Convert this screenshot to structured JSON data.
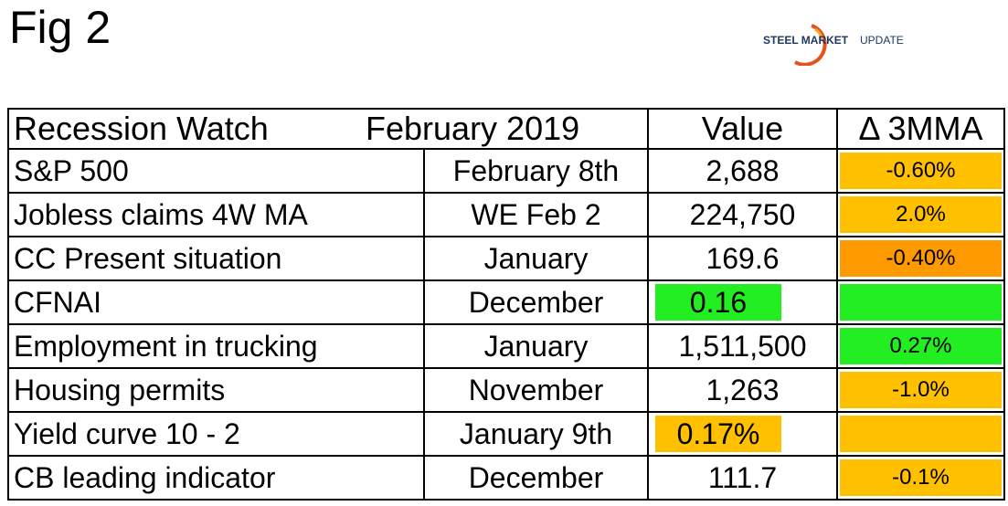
{
  "header": {
    "title": "Fig 2",
    "logo": {
      "strong": "STEEL MARKET",
      "light": "UPDATE"
    }
  },
  "table": {
    "header": [
      "Recession Watch",
      "February 2019",
      "Value",
      "Δ 3MMA"
    ],
    "rows": [
      [
        "S&P 500",
        "February 8th",
        "2,688",
        "-0.60%"
      ],
      [
        "Jobless claims 4W MA",
        "WE Feb 2",
        "224,750",
        "2.0%"
      ],
      [
        "CC Present situation",
        "January",
        "169.6",
        "-0.40%"
      ],
      [
        "CFNAI",
        "December",
        "0.16"
      ],
      [
        "Employment in trucking",
        "January",
        "1,511,500",
        "0.27%"
      ],
      [
        "Housing permits",
        "November",
        "1,263",
        "-1.0%"
      ],
      [
        "Yield curve 10 - 2",
        "January 9th",
        "0.17%"
      ],
      [
        "CB leading indicator",
        "December",
        "111.7",
        "-0.1%"
      ]
    ]
  }
}
